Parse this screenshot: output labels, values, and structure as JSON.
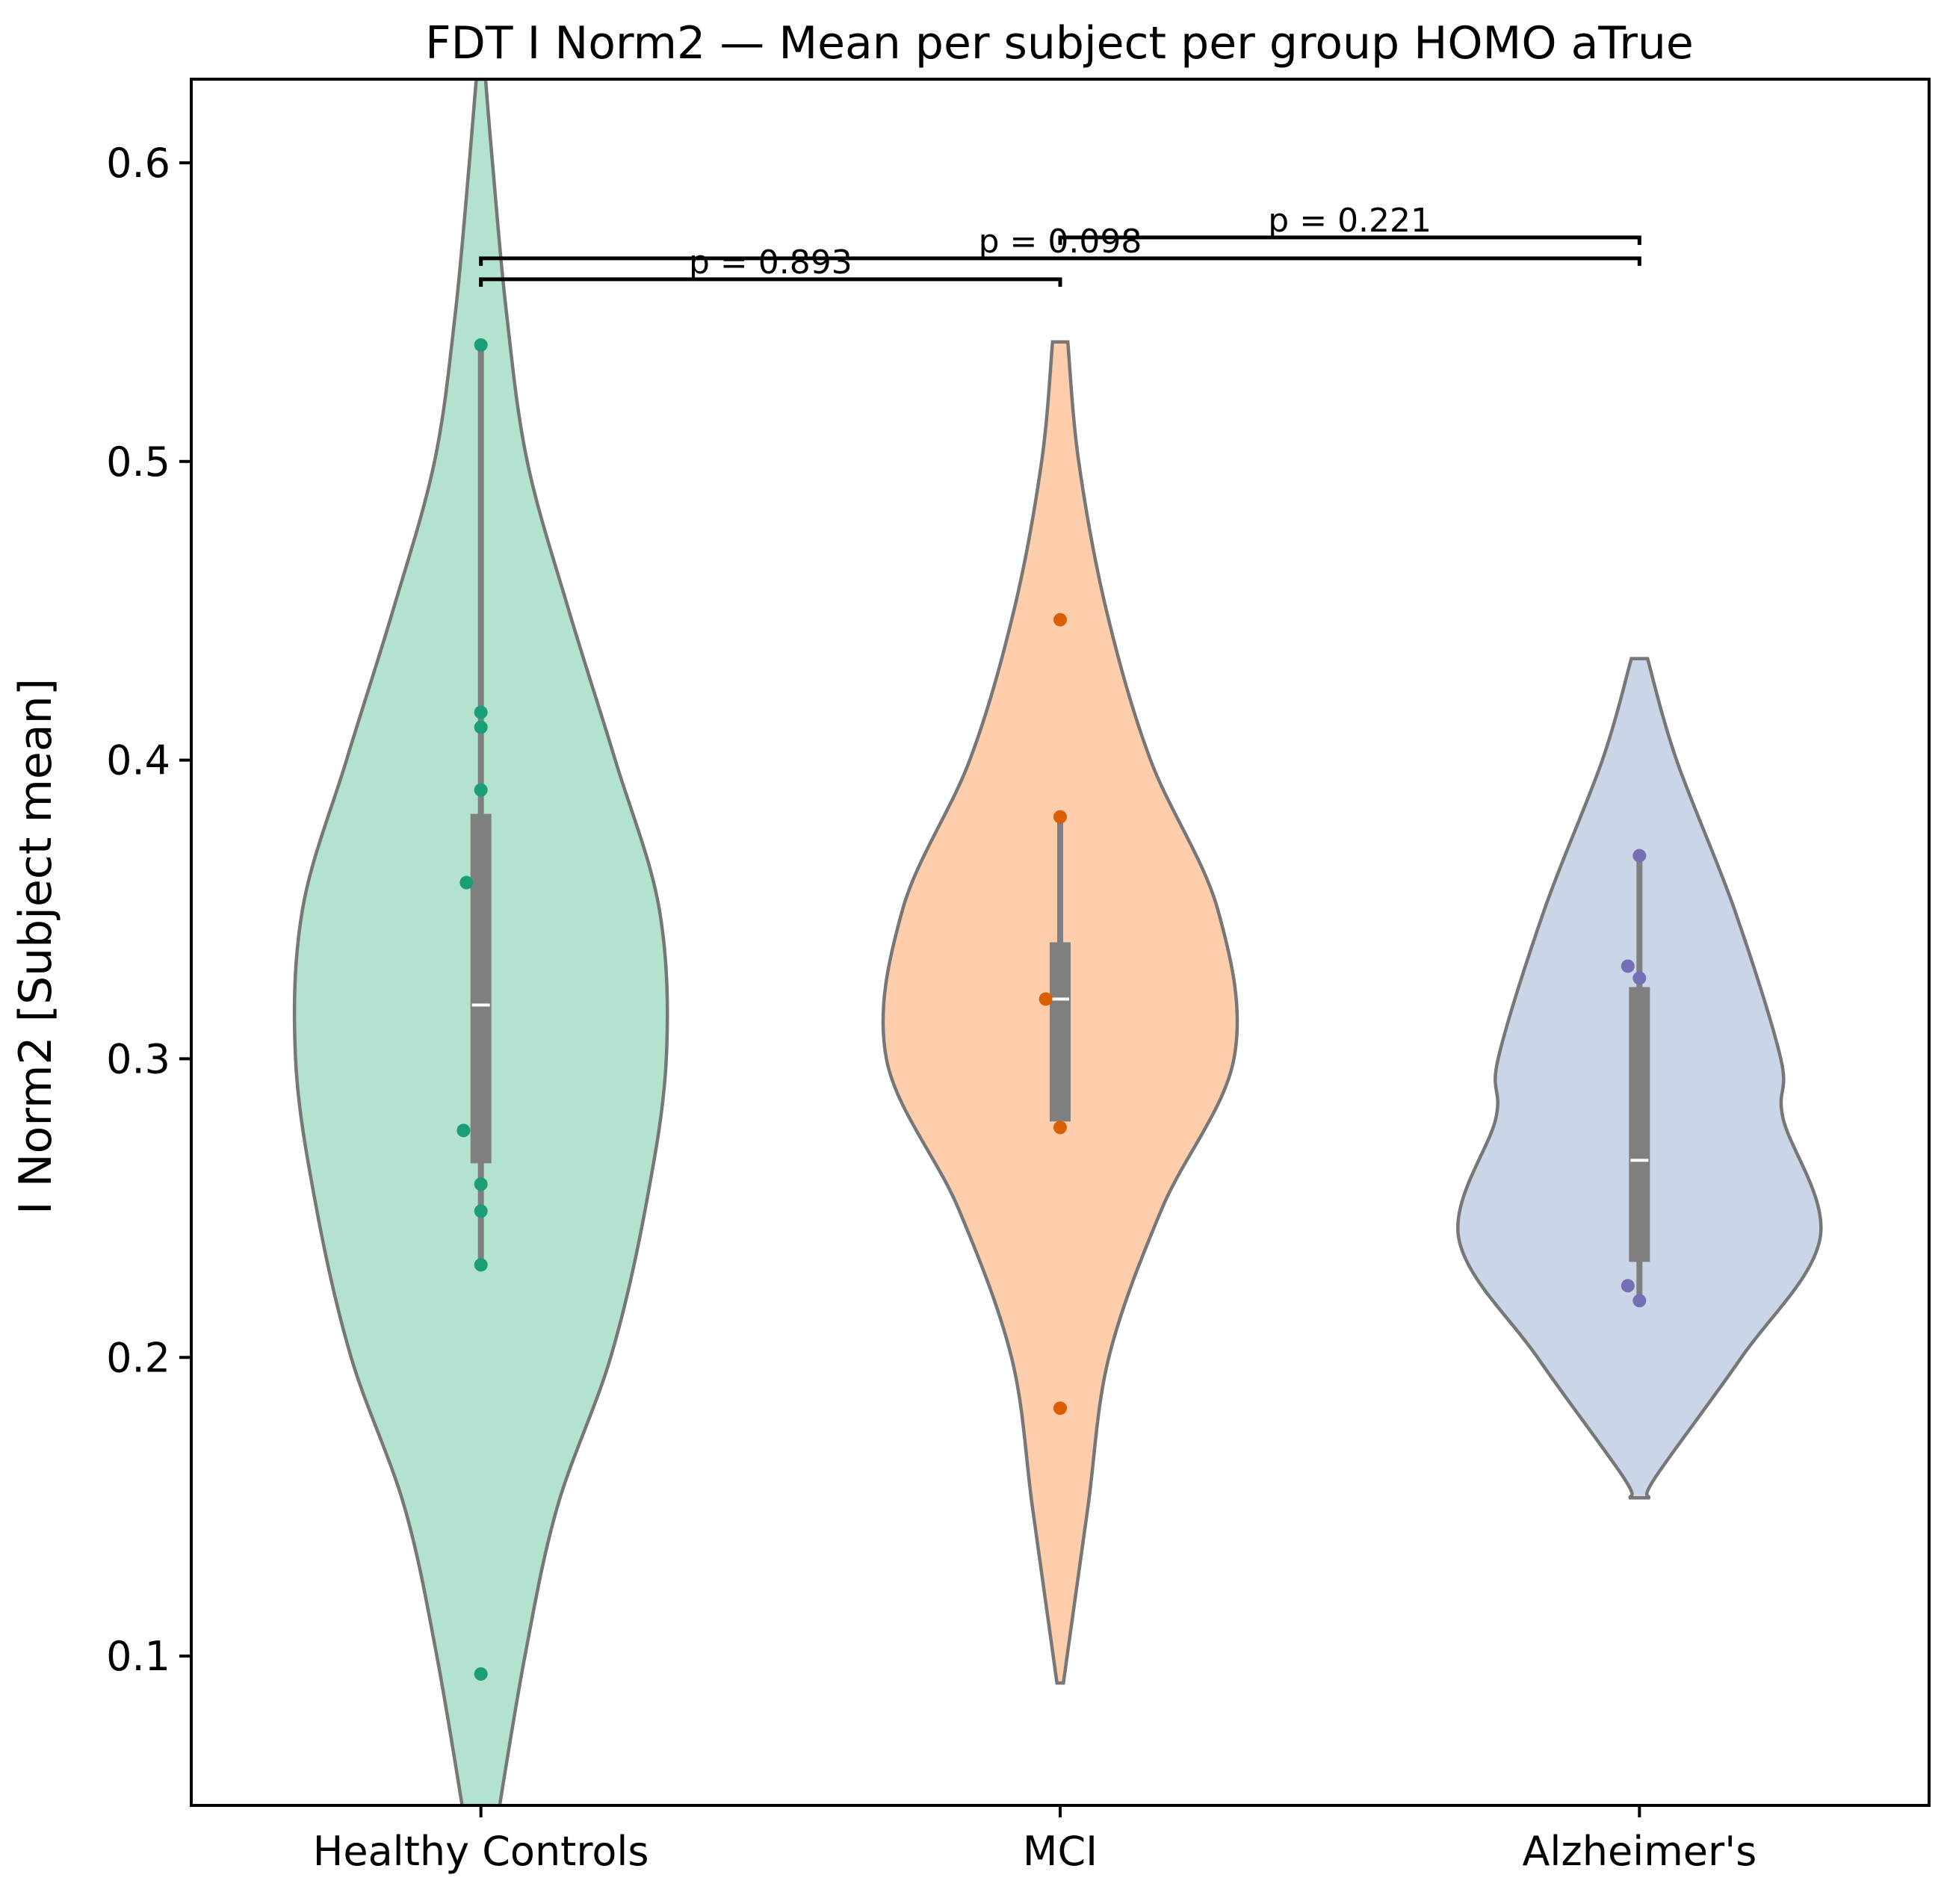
{
  "chart_data": {
    "type": "violin",
    "title": "FDT I Norm2 — Mean per subject per group HOMO aTrue",
    "xlabel": "",
    "ylabel": "I Norm2 [Subject mean]",
    "ylim": [
      0.05,
      0.628
    ],
    "yticks": [
      0.1,
      0.2,
      0.3,
      0.4,
      0.5,
      0.6
    ],
    "ytick_labels": [
      "0.1",
      "0.2",
      "0.3",
      "0.4",
      "0.5",
      "0.6"
    ],
    "grid": false,
    "legend": "none",
    "categories": [
      "Healthy Controls",
      "MCI",
      "Alzheimer's"
    ],
    "groups": [
      {
        "name": "Healthy Controls",
        "fill": "#b3e3ce",
        "point_color": "#1b9e77",
        "median": 0.318,
        "q1": 0.265,
        "q3": 0.382,
        "whisker_low": 0.231,
        "whisker_high": 0.539,
        "points": [
          0.539,
          0.416,
          0.411,
          0.39,
          0.359,
          0.276,
          0.258,
          0.249,
          0.231,
          0.094
        ],
        "jitter": [
          0,
          0,
          0,
          0,
          -0.025,
          -0.03,
          0,
          0,
          0,
          0
        ],
        "density_y": [
          0.04,
          0.1,
          0.15,
          0.2,
          0.25,
          0.3,
          0.35,
          0.4,
          0.45,
          0.5,
          0.55,
          0.6,
          0.628
        ],
        "density_width": [
          0.06,
          0.19,
          0.33,
          0.56,
          0.71,
          0.8,
          0.77,
          0.58,
          0.38,
          0.2,
          0.11,
          0.05,
          0.02
        ]
      },
      {
        "name": "MCI",
        "fill": "#fdcdac",
        "point_color": "#d95f02",
        "median": 0.32,
        "q1": 0.279,
        "q3": 0.339,
        "whisker_low": 0.276,
        "whisker_high": 0.381,
        "points": [
          0.447,
          0.381,
          0.32,
          0.277,
          0.183
        ],
        "jitter": [
          0,
          0,
          -0.025,
          0,
          0
        ],
        "density_y": [
          0.091,
          0.1,
          0.15,
          0.2,
          0.25,
          0.3,
          0.35,
          0.4,
          0.45,
          0.5,
          0.54
        ],
        "density_width": [
          0.014,
          0.03,
          0.12,
          0.21,
          0.44,
          0.75,
          0.68,
          0.39,
          0.2,
          0.08,
          0.033
        ]
      },
      {
        "name": "Alzheimer's",
        "fill": "#cbd5e8",
        "point_color": "#7570b3",
        "median": 0.266,
        "q1": 0.232,
        "q3": 0.324,
        "whisker_low": 0.219,
        "whisker_high": 0.368,
        "points": [
          0.368,
          0.331,
          0.327,
          0.224,
          0.219
        ],
        "jitter": [
          0,
          -0.02,
          0,
          -0.02,
          0
        ],
        "density_y": [
          0.153,
          0.16,
          0.2,
          0.24,
          0.28,
          0.3,
          0.35,
          0.4,
          0.434
        ],
        "density_width": [
          0.04,
          0.07,
          0.44,
          0.78,
          0.62,
          0.61,
          0.41,
          0.16,
          0.035
        ]
      }
    ],
    "comparisons": [
      {
        "from": "Healthy Controls",
        "to": "MCI",
        "y": 0.561,
        "label": "p = 0.893"
      },
      {
        "from": "Healthy Controls",
        "to": "Alzheimer's",
        "y": 0.568,
        "label": "p = 0.098"
      },
      {
        "from": "MCI",
        "to": "Alzheimer's",
        "y": 0.575,
        "label": "p = 0.221"
      }
    ]
  }
}
